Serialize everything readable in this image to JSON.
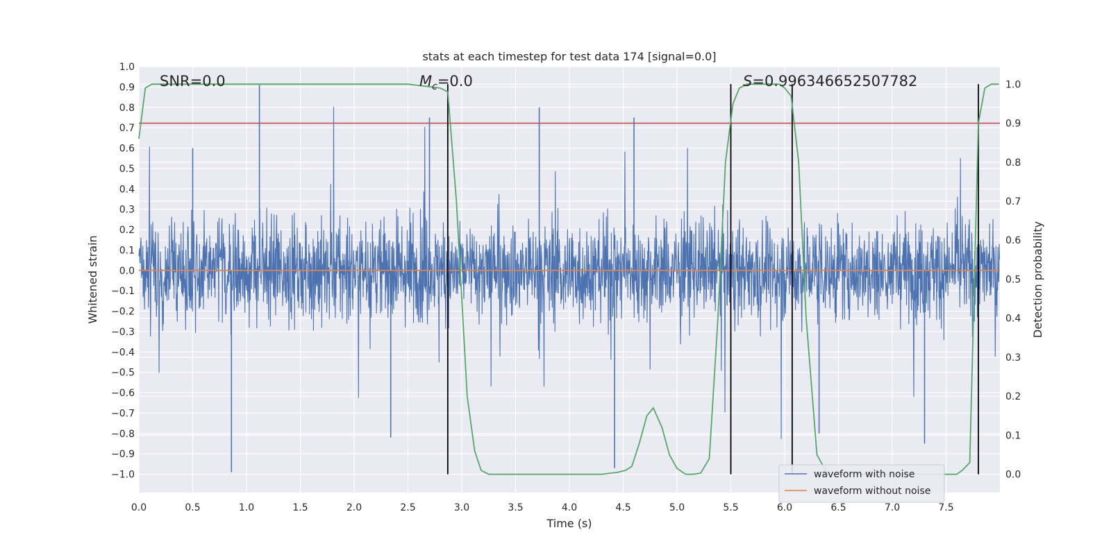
{
  "chart_data": {
    "type": "line",
    "title": "stats at each timestep for test data 174 [signal=0.0]",
    "xlabel": "Time (s)",
    "ylabel": "Whitened strain",
    "y2label": "Detection probability",
    "xlim": [
      0.0,
      8.0
    ],
    "ylim": [
      -1.09,
      1.0
    ],
    "y2lim": [
      -0.047,
      1.045
    ],
    "xticks": [
      "0.0",
      "0.5",
      "1.0",
      "1.5",
      "2.0",
      "2.5",
      "3.0",
      "3.5",
      "4.0",
      "4.5",
      "5.0",
      "5.5",
      "6.0",
      "6.5",
      "7.0",
      "7.5"
    ],
    "yticks": [
      "1.0",
      "0.9",
      "0.8",
      "0.7",
      "0.6",
      "0.5",
      "0.4",
      "0.3",
      "0.2",
      "0.1",
      "0.0",
      "−0.1",
      "−0.2",
      "−0.3",
      "−0.4",
      "−0.5",
      "−0.6",
      "−0.7",
      "−0.8",
      "−0.9",
      "−1.0"
    ],
    "y2ticks": [
      "1.0",
      "0.9",
      "0.8",
      "0.7",
      "0.6",
      "0.5",
      "0.4",
      "0.3",
      "0.2",
      "0.1",
      "0.0"
    ],
    "grid": true,
    "annotations": {
      "snr": "SNR=0.0",
      "mc_symbol": "M",
      "mc_sub": "c",
      "mc_value": "=0.0",
      "s_symbol": "S",
      "s_value": "=0.996346652507782"
    },
    "threshold_line": {
      "axis": "y2",
      "value": 0.9,
      "color": "#c44e52"
    },
    "vertical_markers": [
      2.87,
      5.5,
      6.07,
      7.8
    ],
    "legend_position": "lower-right",
    "series": [
      {
        "name": "waveform with noise",
        "axis": "y",
        "color": "#4c72b0",
        "description_style": "dense noise band",
        "band_core": [
          -0.42,
          0.38
        ],
        "spike_extremes": [
          [
            0.86,
            -0.99
          ],
          [
            1.12,
            0.91
          ],
          [
            2.34,
            -0.82
          ],
          [
            2.7,
            0.75
          ],
          [
            3.72,
            0.8
          ],
          [
            4.42,
            -0.97
          ],
          [
            4.6,
            0.75
          ],
          [
            6.32,
            -0.8
          ],
          [
            7.3,
            -0.85
          ],
          [
            0.5,
            0.6
          ]
        ]
      },
      {
        "name": "waveform without noise",
        "axis": "y",
        "color": "#dd8452",
        "x": [
          0.0,
          8.0
        ],
        "y": [
          0.0,
          0.0
        ]
      },
      {
        "name": "detection probability",
        "axis": "y2",
        "color": "#55a868",
        "x": [
          0.0,
          0.06,
          0.12,
          0.5,
          1.0,
          1.5,
          2.0,
          2.5,
          2.8,
          2.87,
          2.95,
          3.05,
          3.12,
          3.18,
          3.25,
          3.3,
          3.5,
          4.0,
          4.3,
          4.45,
          4.52,
          4.58,
          4.65,
          4.72,
          4.78,
          4.86,
          4.93,
          5.0,
          5.08,
          5.15,
          5.22,
          5.3,
          5.38,
          5.45,
          5.52,
          5.58,
          5.65,
          5.7,
          5.8,
          5.95,
          6.0,
          6.06,
          6.13,
          6.2,
          6.3,
          6.4,
          7.0,
          7.6,
          7.65,
          7.72,
          7.8,
          7.86,
          7.92,
          7.99
        ],
        "y": [
          0.86,
          0.99,
          1.0,
          1.0,
          1.0,
          1.0,
          1.0,
          1.0,
          0.99,
          0.98,
          0.7,
          0.2,
          0.06,
          0.01,
          0.0,
          0.0,
          0.0,
          0.0,
          0.0,
          0.005,
          0.01,
          0.02,
          0.08,
          0.15,
          0.17,
          0.12,
          0.05,
          0.015,
          0.0,
          0.0,
          0.003,
          0.04,
          0.4,
          0.8,
          0.95,
          0.99,
          1.0,
          1.0,
          1.0,
          1.0,
          0.99,
          0.97,
          0.8,
          0.4,
          0.05,
          0.0,
          0.0,
          0.0,
          0.01,
          0.03,
          0.9,
          0.99,
          1.0,
          1.0
        ]
      }
    ]
  }
}
